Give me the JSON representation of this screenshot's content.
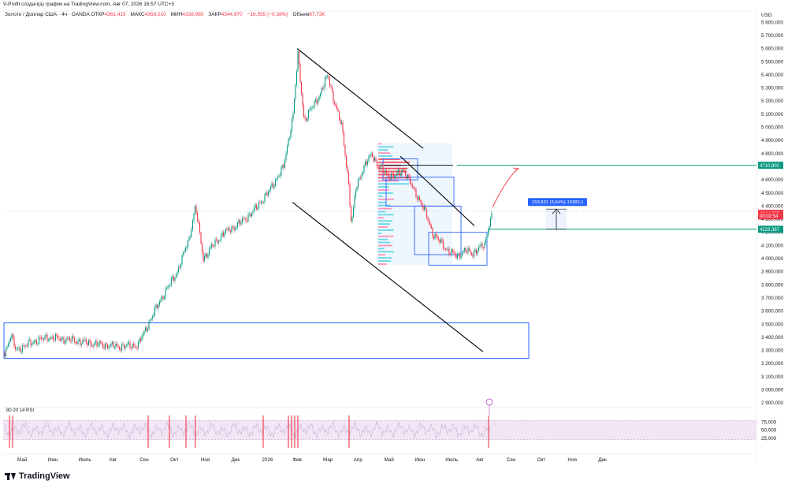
{
  "header": {
    "title": "V-Profit создал(а) график на TradingView.com, Авг 07, 2026 16:57 UTC+3"
  },
  "legend": {
    "symbol": "Золото / Доллар США · 4ч · OANDA",
    "open_label": "ОТКР",
    "open": "4361,415",
    "high_label": "МАКС",
    "high": "4368,010",
    "low_label": "МИН",
    "low": "4338,980",
    "close_label": "ЗАКР",
    "close": "4344,870",
    "change": "−16,555 (−0,38%)",
    "volume_label": "Объем",
    "volume": "87,73К"
  },
  "price_axis": {
    "currency": "USD",
    "ticks": [
      "5 800,000",
      "5 700,000",
      "5 600,000",
      "5 500,000",
      "5 400,000",
      "5 300,000",
      "5 200,000",
      "5 100,000",
      "5 000,000",
      "4 900,000",
      "4 800,000",
      "4 700,000",
      "4 600,000",
      "4 500,000",
      "4 400,000",
      "4 300,000",
      "4 200,000",
      "4 100,000",
      "4 000,000",
      "3 900,000",
      "3 800,000",
      "3 700,000",
      "3 600,000",
      "3 500,000",
      "3 400,000",
      "3 300,000",
      "3 200,000",
      "3 100,000",
      "3 000,000",
      "2 900,000"
    ],
    "tick_values": [
      5800,
      5700,
      5600,
      5500,
      5400,
      5300,
      5200,
      5100,
      5000,
      4900,
      4800,
      4700,
      4600,
      4500,
      4400,
      4300,
      4200,
      4100,
      4000,
      3900,
      3800,
      3700,
      3600,
      3500,
      3400,
      3300,
      3200,
      3100,
      3000,
      2900
    ],
    "labels": [
      {
        "text": "4710,802",
        "value": 4710.802,
        "color": "#089981"
      },
      {
        "text": "4344,870",
        "value": 4344.87,
        "color": "#f23645"
      },
      {
        "text": "00:02:54",
        "value": 4325,
        "color": "#f23645"
      },
      {
        "text": "4223,387",
        "value": 4223.387,
        "color": "#089981"
      }
    ]
  },
  "time_axis": {
    "labels": [
      "Май",
      "Июн",
      "Июль",
      "Авг",
      "Сен",
      "Окт",
      "Ноя",
      "Дек",
      "2026",
      "Фев",
      "Мар",
      "Апр",
      "Май",
      "Июн",
      "Июль",
      "Авг",
      "Сен",
      "Окт",
      "Ноя",
      "Дек"
    ],
    "positions": [
      0,
      1,
      2,
      3,
      4,
      5,
      6,
      7,
      8,
      9,
      10,
      11,
      12,
      13,
      14,
      15,
      16,
      17,
      18,
      19
    ]
  },
  "measure": {
    "text": "153,831 (3,64%) 15383,1",
    "from": 4223.387,
    "to": 4377.218
  },
  "rsi": {
    "label": "80 20 14 RSI",
    "ticks": [
      "75,000",
      "50,000",
      "25,000"
    ],
    "tick_values": [
      75,
      50,
      25
    ],
    "upper": 80,
    "lower": 20
  },
  "footer": {
    "brand": "TradingView"
  },
  "chart_data": {
    "type": "candlestick",
    "title": "Золото / Доллар США · 4ч · OANDA",
    "xlabel": "",
    "ylabel": "USD",
    "ylim": [
      2850,
      5850
    ],
    "x": [
      "2025-05",
      "2025-06",
      "2025-07",
      "2025-08",
      "2025-09",
      "2025-10",
      "2025-11",
      "2025-12",
      "2026-01",
      "2026-02",
      "2026-03",
      "2026-04",
      "2026-05",
      "2026-06",
      "2026-07",
      "2026-08"
    ],
    "series": [
      {
        "values": [
          3300,
          3380,
          3370,
          3400,
          3620,
          4150,
          4000,
          4300,
          4700,
          5000,
          5150,
          4600,
          4620,
          4100,
          4020,
          4345
        ]
      }
    ],
    "key_levels": [
      4710.802,
      4344.87,
      4223.387
    ],
    "annotations": [
      "descending channel",
      "volume profile",
      "demand zone 3240–3510",
      "measure 153,831 (3,64%) 15383,1"
    ]
  },
  "colors": {
    "bull": "#089981",
    "bear": "#f23645",
    "channel": "#000000",
    "box": "#2962ff",
    "level": "#089981",
    "rsi_fill": "#f3e5f5",
    "rsi_line": "#c7b0d8"
  }
}
